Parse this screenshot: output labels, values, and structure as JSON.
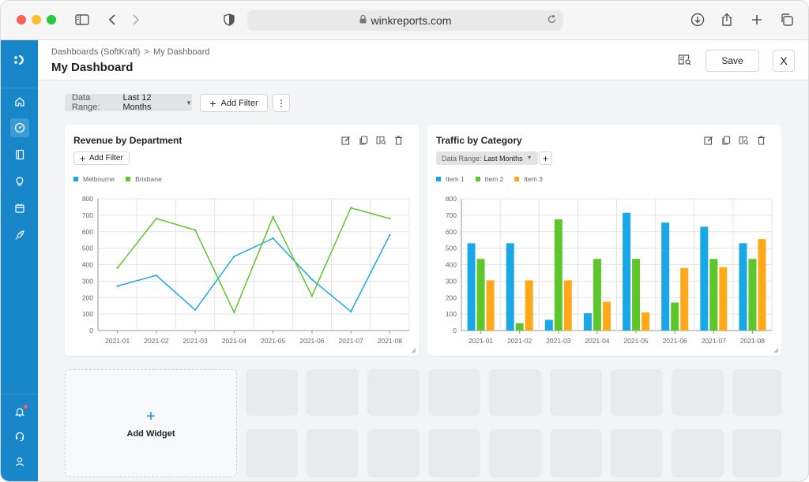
{
  "browser": {
    "url": "winkreports.com"
  },
  "header": {
    "breadcrumb_parent": "Dashboards (SoftKraft)",
    "breadcrumb_separator": ">",
    "breadcrumb_current": "My Dashboard",
    "title": "My Dashboard",
    "save_label": "Save",
    "close_label": "X"
  },
  "filters": {
    "date_range_label": "Data Range:",
    "date_range_value": "Last 12 Months",
    "add_filter_label": "Add Filter",
    "more_label": "⋮"
  },
  "widgets": {
    "add_widget_label": "Add Widget"
  },
  "colors": {
    "accent": "#1787c9",
    "series_blue": "#1aa7e6",
    "series_green": "#5cc62a",
    "series_orange": "#ffa91a"
  },
  "cards": [
    {
      "title": "Revenue by Department",
      "add_filter_label": "Add Filter"
    },
    {
      "title": "Traffic by Category",
      "chip_label": "Data Range:",
      "chip_value": "Last Months",
      "chip_plus": "+"
    }
  ],
  "chart_data": [
    {
      "type": "line",
      "title": "Revenue by Department",
      "categories": [
        "2021-01",
        "2021-02",
        "2021-03",
        "2021-04",
        "2021-05",
        "2021-06",
        "2021-07",
        "2021-08"
      ],
      "series": [
        {
          "name": "Melbourne",
          "color": "#1aa7e6",
          "values": [
            270,
            335,
            125,
            450,
            560,
            310,
            115,
            580
          ]
        },
        {
          "name": "Brisbane",
          "color": "#5cc62a",
          "values": [
            380,
            680,
            610,
            110,
            690,
            210,
            745,
            680
          ]
        }
      ],
      "ylim": [
        0,
        800
      ],
      "yticks": [
        0,
        100,
        200,
        300,
        400,
        500,
        600,
        700,
        800
      ],
      "grid": true,
      "legend_position": "top-left"
    },
    {
      "type": "bar",
      "title": "Traffic by Category",
      "categories": [
        "2021-01",
        "2021-02",
        "2021-03",
        "2021-04",
        "2021-05",
        "2021-06",
        "2021-07",
        "2021-08"
      ],
      "series": [
        {
          "name": "Item 1",
          "color": "#1aa7e6",
          "values": [
            530,
            530,
            65,
            105,
            715,
            655,
            630,
            530
          ]
        },
        {
          "name": "Item 2",
          "color": "#5cc62a",
          "values": [
            435,
            45,
            675,
            435,
            435,
            170,
            435,
            435
          ]
        },
        {
          "name": "Item 3",
          "color": "#ffa91a",
          "values": [
            305,
            305,
            305,
            175,
            110,
            380,
            385,
            555
          ]
        }
      ],
      "ylim": [
        0,
        800
      ],
      "yticks": [
        0,
        100,
        200,
        300,
        400,
        500,
        600,
        700,
        800
      ],
      "grid": true,
      "legend_position": "top-left"
    }
  ]
}
